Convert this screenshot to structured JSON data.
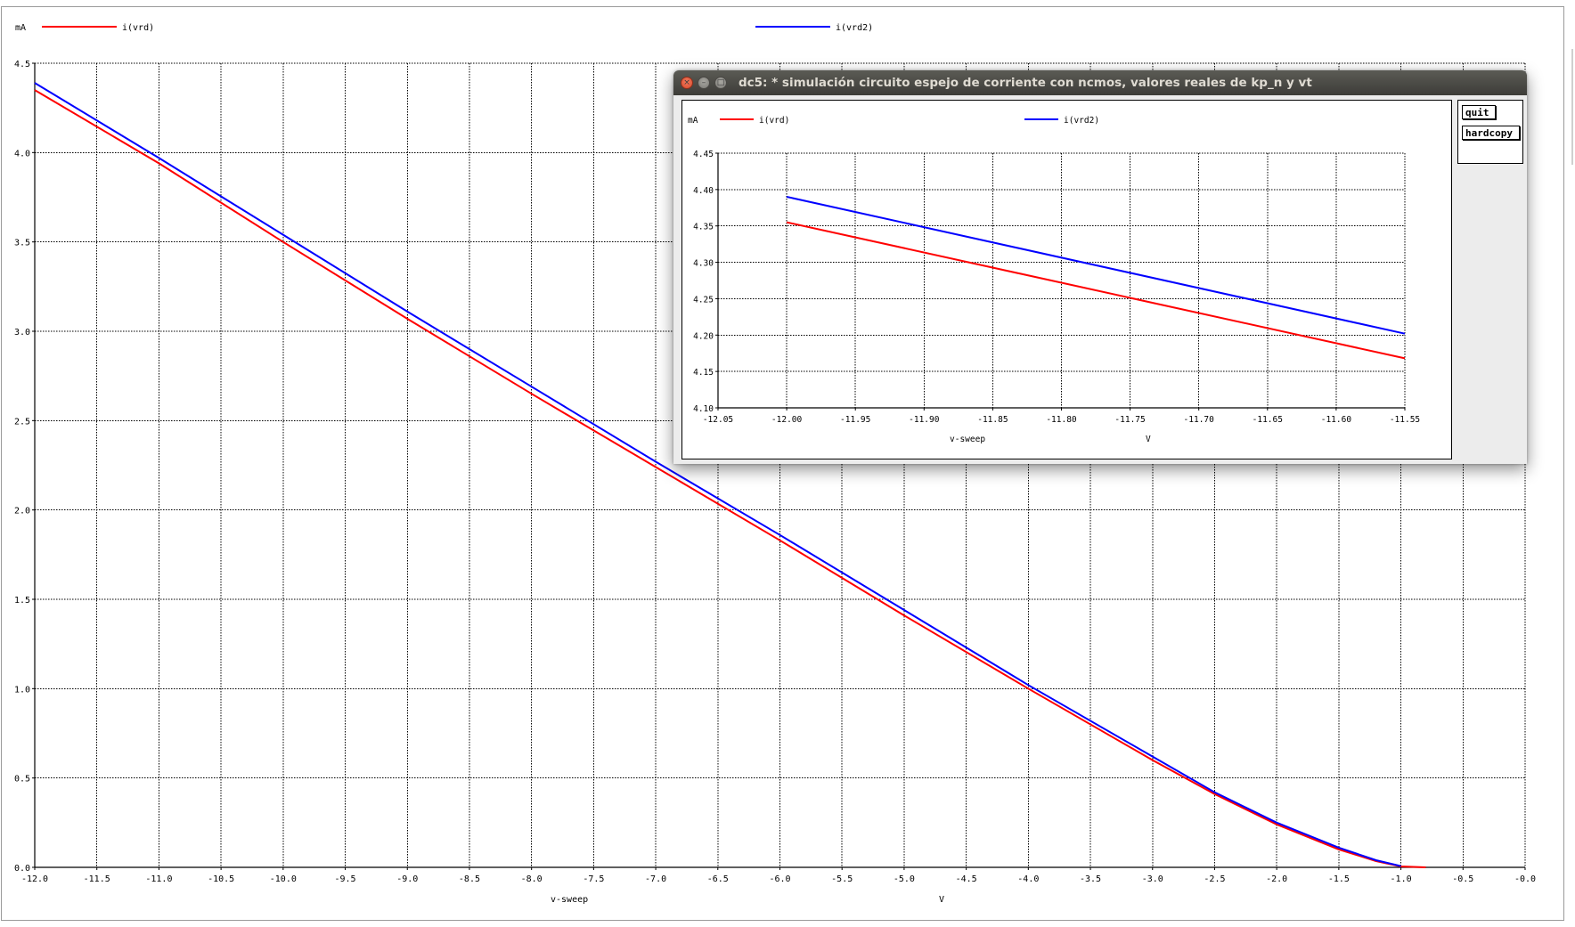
{
  "main_plot": {
    "y_unit": "mA",
    "legend": [
      {
        "name": "i(vrd)",
        "color": "#ff0000"
      },
      {
        "name": "i(vrd2)",
        "color": "#0000ff"
      }
    ],
    "xlabel": "v-sweep",
    "xunit": "V"
  },
  "popup": {
    "title": "dc5: * simulación circuito espejo de corriente con ncmos, valores reales de kp_n y vt",
    "window_controls": [
      "close-icon",
      "minimize-icon",
      "maximize-icon"
    ],
    "buttons": {
      "quit": "quit",
      "hardcopy": "hardcopy"
    },
    "y_unit": "mA",
    "legend": [
      {
        "name": "i(vrd)",
        "color": "#ff0000"
      },
      {
        "name": "i(vrd2)",
        "color": "#0000ff"
      }
    ],
    "xlabel": "v-sweep",
    "xunit": "V"
  },
  "chart_data": [
    {
      "type": "line",
      "xlabel": "v-sweep",
      "xunit": "V",
      "ylabel": "mA",
      "xlim": [
        -12.0,
        0.0
      ],
      "ylim": [
        0.0,
        4.5
      ],
      "x_ticks": [
        "-12.0",
        "-11.5",
        "-11.0",
        "-10.5",
        "-10.0",
        "-9.5",
        "-9.0",
        "-8.5",
        "-8.0",
        "-7.5",
        "-7.0",
        "-6.5",
        "-6.0",
        "-5.5",
        "-5.0",
        "-4.5",
        "-4.0",
        "-3.5",
        "-3.0",
        "-2.5",
        "-2.0",
        "-1.5",
        "-1.0",
        "-0.5",
        "-0.0"
      ],
      "y_ticks": [
        "0.0",
        "0.5",
        "1.0",
        "1.5",
        "2.0",
        "2.5",
        "3.0",
        "3.5",
        "4.0",
        "4.5"
      ],
      "grid": true,
      "legend": "top",
      "series": [
        {
          "name": "i(vrd)",
          "color": "#ff0000",
          "x": [
            -12.0,
            -11.0,
            -10.0,
            -9.0,
            -8.0,
            -7.0,
            -6.0,
            -5.0,
            -4.0,
            -3.0,
            -2.5,
            -2.0,
            -1.5,
            -1.2,
            -1.0,
            -0.8
          ],
          "y": [
            4.35,
            3.94,
            3.5,
            3.07,
            2.65,
            2.24,
            1.83,
            1.41,
            1.0,
            0.6,
            0.41,
            0.24,
            0.1,
            0.035,
            0.005,
            0.0
          ]
        },
        {
          "name": "i(vrd2)",
          "color": "#0000ff",
          "x": [
            -12.0,
            -11.0,
            -10.0,
            -9.0,
            -8.0,
            -7.0,
            -6.0,
            -5.0,
            -4.0,
            -3.0,
            -2.5,
            -2.0,
            -1.5,
            -1.2,
            -1.0
          ],
          "y": [
            4.39,
            3.97,
            3.54,
            3.11,
            2.69,
            2.27,
            1.86,
            1.44,
            1.02,
            0.62,
            0.42,
            0.25,
            0.11,
            0.04,
            0.007
          ]
        }
      ]
    },
    {
      "type": "line",
      "xlabel": "v-sweep",
      "xunit": "V",
      "ylabel": "mA",
      "xlim": [
        -12.05,
        -11.55
      ],
      "ylim": [
        4.1,
        4.45
      ],
      "x_ticks": [
        "-12.05",
        "-12.00",
        "-11.95",
        "-11.90",
        "-11.85",
        "-11.80",
        "-11.75",
        "-11.70",
        "-11.65",
        "-11.60",
        "-11.55"
      ],
      "y_ticks": [
        "4.10",
        "4.15",
        "4.20",
        "4.25",
        "4.30",
        "4.35",
        "4.40",
        "4.45"
      ],
      "grid": true,
      "legend": "top",
      "series": [
        {
          "name": "i(vrd)",
          "color": "#ff0000",
          "x": [
            -12.0,
            -11.55
          ],
          "y": [
            4.355,
            4.168
          ]
        },
        {
          "name": "i(vrd2)",
          "color": "#0000ff",
          "x": [
            -12.0,
            -11.55
          ],
          "y": [
            4.39,
            4.202
          ]
        }
      ]
    }
  ]
}
